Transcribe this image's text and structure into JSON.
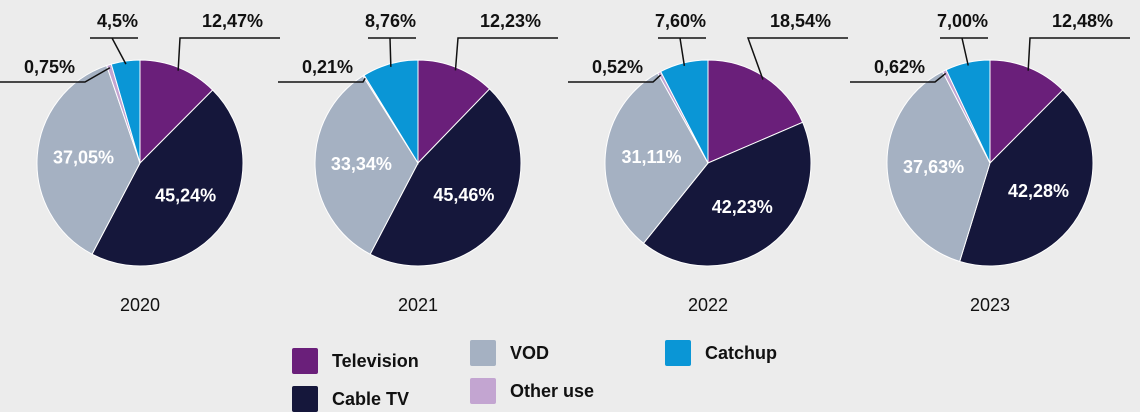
{
  "chart_data": [
    {
      "type": "pie",
      "title": "2020",
      "categories": [
        "Television",
        "Cable TV",
        "VOD",
        "Other use",
        "Catchup"
      ],
      "values": [
        12.47,
        45.24,
        37.05,
        0.75,
        4.5
      ],
      "value_labels": [
        "12,47%",
        "45,24%",
        "37,05%",
        "0,75%",
        "4,5%"
      ],
      "colors": [
        "#6a1f7a",
        "#15173b",
        "#a5b1c2",
        "#c3a5d1",
        "#0a96d6"
      ]
    },
    {
      "type": "pie",
      "title": "2021",
      "categories": [
        "Television",
        "Cable TV",
        "VOD",
        "Other use",
        "Catchup"
      ],
      "values": [
        12.23,
        45.46,
        33.34,
        0.21,
        8.76
      ],
      "value_labels": [
        "12,23%",
        "45,46%",
        "33,34%",
        "0,21%",
        "8,76%"
      ],
      "colors": [
        "#6a1f7a",
        "#15173b",
        "#a5b1c2",
        "#c3a5d1",
        "#0a96d6"
      ]
    },
    {
      "type": "pie",
      "title": "2022",
      "categories": [
        "Television",
        "Cable TV",
        "VOD",
        "Other use",
        "Catchup"
      ],
      "values": [
        18.54,
        42.23,
        31.11,
        0.52,
        7.6
      ],
      "value_labels": [
        "18,54%",
        "42,23%",
        "31,11%",
        "0,52%",
        "7,60%"
      ],
      "colors": [
        "#6a1f7a",
        "#15173b",
        "#a5b1c2",
        "#c3a5d1",
        "#0a96d6"
      ]
    },
    {
      "type": "pie",
      "title": "2023",
      "categories": [
        "Television",
        "Cable TV",
        "VOD",
        "Other use",
        "Catchup"
      ],
      "values": [
        12.48,
        42.28,
        37.63,
        0.62,
        7.0
      ],
      "value_labels": [
        "12,48%",
        "42,28%",
        "37,63%",
        "0,62%",
        "7,00%"
      ],
      "colors": [
        "#6a1f7a",
        "#15173b",
        "#a5b1c2",
        "#c3a5d1",
        "#0a96d6"
      ]
    }
  ]
}
